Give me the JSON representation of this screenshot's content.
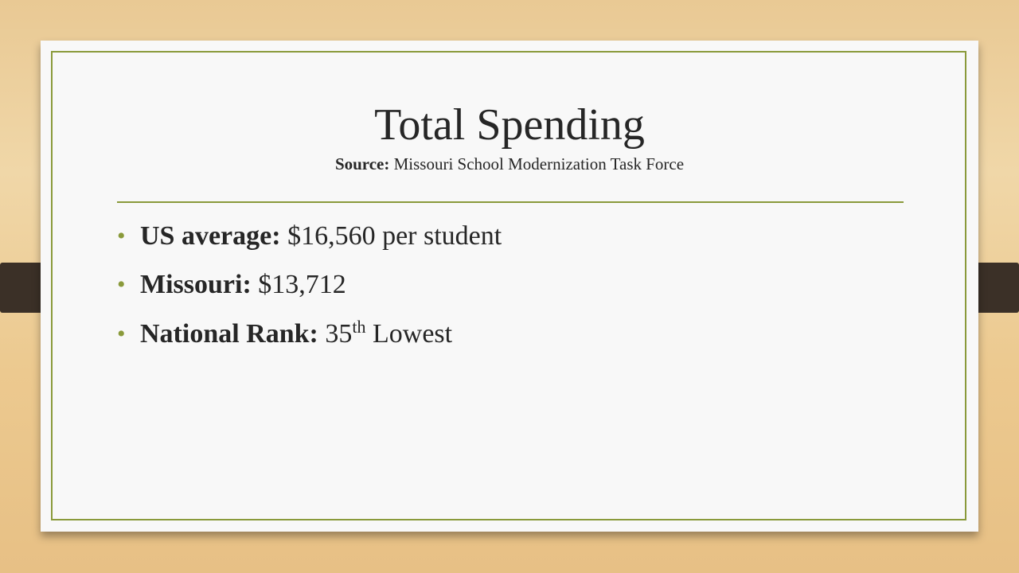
{
  "slide": {
    "title": "Total Spending",
    "source": {
      "label": "Source:",
      "text": "Missouri School Modernization Task Force"
    },
    "bullets": [
      {
        "label": "US average:",
        "text": "$16,560 per student"
      },
      {
        "label": "Missouri:",
        "text": "$13,712"
      },
      {
        "label": "National Rank:",
        "text": "35",
        "superscript": "th",
        "suffix": "Lowest"
      }
    ]
  }
}
